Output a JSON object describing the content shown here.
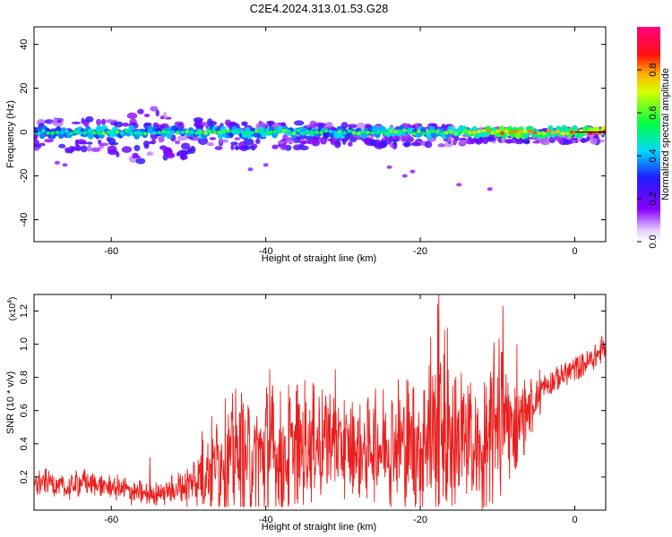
{
  "title": "C2E4.2024.313.01.53.G28",
  "colors": {
    "snr_line": "#e8201e",
    "ridge_start": "#7a00ff",
    "axis": "#000000"
  },
  "chart_data": [
    {
      "type": "heatmap",
      "xlabel": "Height of straight line (km)",
      "ylabel": "Frequency (Hz)",
      "xlim": [
        -70,
        4
      ],
      "ylim": [
        -50,
        48
      ],
      "x_ticks": [
        -60,
        -40,
        -20,
        0
      ],
      "x_tick_labels": [
        "-60",
        "-40",
        "-20",
        "0"
      ],
      "y_ticks": [
        -40,
        -20,
        0,
        20,
        40
      ],
      "y_tick_labels": [
        "-40",
        "-20",
        "0",
        "20",
        "40"
      ],
      "colorbar": {
        "label": "Normalized spectral amplitude",
        "range": [
          0,
          1
        ],
        "ticks": [
          0.0,
          0.2,
          0.4,
          0.6,
          0.8
        ],
        "tick_labels": [
          "0.0",
          "0.2",
          "0.4",
          "0.6",
          "0.8"
        ],
        "colormap": "rainbow (white-purple-blue-cyan-green-yellow-red-magenta)"
      },
      "ridge": {
        "center_frequency_hz": 0,
        "x": [
          -69,
          -64,
          -60,
          -56,
          -52,
          -48,
          -44,
          -40,
          -36,
          -32,
          -28,
          -24,
          -20,
          -16,
          -12,
          -8,
          -4,
          0,
          4
        ],
        "amplitude": [
          0.45,
          0.5,
          0.55,
          0.5,
          0.5,
          0.55,
          0.5,
          0.55,
          0.55,
          0.5,
          0.55,
          0.55,
          0.55,
          0.6,
          0.7,
          0.85,
          0.7,
          0.75,
          0.95
        ],
        "half_width_hz": [
          4,
          5,
          5,
          8,
          8,
          4,
          4,
          4,
          4,
          3,
          3,
          3,
          3,
          3,
          2,
          2,
          2,
          2,
          2
        ]
      }
    },
    {
      "type": "line",
      "xlabel": "Height of straight line (km)",
      "ylabel": "SNR (10 * v/v)",
      "y_multiplier": "(x10",
      "y_multiplier_exp": "4",
      "y_multiplier_close": ")",
      "xlim": [
        -70,
        4
      ],
      "ylim": [
        0,
        1.3
      ],
      "x_ticks": [
        -60,
        -40,
        -20,
        0
      ],
      "x_tick_labels": [
        "-60",
        "-40",
        "-20",
        "0"
      ],
      "y_ticks": [
        0.2,
        0.4,
        0.6,
        0.8,
        1.0,
        1.2
      ],
      "y_tick_labels": [
        "0.2",
        "0.4",
        "0.6",
        "0.8",
        "1.0",
        "1.2"
      ],
      "series": [
        {
          "x": [
            -70,
            -68,
            -66,
            -64,
            -62,
            -60,
            -58,
            -56,
            -54,
            -52,
            -50,
            -48,
            -46,
            -44,
            -42,
            -40,
            -38,
            -36,
            -34,
            -32,
            -30,
            -28,
            -26,
            -24,
            -22,
            -20,
            -18,
            -16,
            -14,
            -12,
            -10,
            -8,
            -6,
            -4,
            -2,
            0,
            2,
            4
          ],
          "base": [
            0.15,
            0.18,
            0.12,
            0.17,
            0.15,
            0.14,
            0.12,
            0.1,
            0.1,
            0.12,
            0.15,
            0.25,
            0.3,
            0.35,
            0.3,
            0.35,
            0.3,
            0.38,
            0.4,
            0.45,
            0.4,
            0.35,
            0.38,
            0.4,
            0.42,
            0.38,
            0.55,
            0.45,
            0.4,
            0.3,
            0.6,
            0.5,
            0.6,
            0.75,
            0.8,
            0.85,
            0.9,
            0.98
          ],
          "amp": [
            0.1,
            0.08,
            0.08,
            0.1,
            0.08,
            0.08,
            0.1,
            0.08,
            0.08,
            0.1,
            0.15,
            0.3,
            0.35,
            0.45,
            0.4,
            0.5,
            0.45,
            0.45,
            0.4,
            0.4,
            0.35,
            0.3,
            0.35,
            0.4,
            0.45,
            0.5,
            0.75,
            0.6,
            0.5,
            0.4,
            0.6,
            0.35,
            0.2,
            0.15,
            0.1,
            0.08,
            0.06,
            0.05
          ]
        }
      ],
      "peaks": [
        {
          "x": -55,
          "y": 0.32
        },
        {
          "x": -39.5,
          "y": 0.85
        },
        {
          "x": -31,
          "y": 0.85
        },
        {
          "x": -17.6,
          "y": 1.3
        },
        {
          "x": -16.5,
          "y": 1.1
        },
        {
          "x": -9.3,
          "y": 1.23
        },
        {
          "x": -7.5,
          "y": 1.0
        },
        {
          "x": 3.5,
          "y": 1.05
        }
      ],
      "dips": [
        {
          "x": -12,
          "y": 0.0
        },
        {
          "x": -11,
          "y": 0.05
        }
      ]
    }
  ]
}
